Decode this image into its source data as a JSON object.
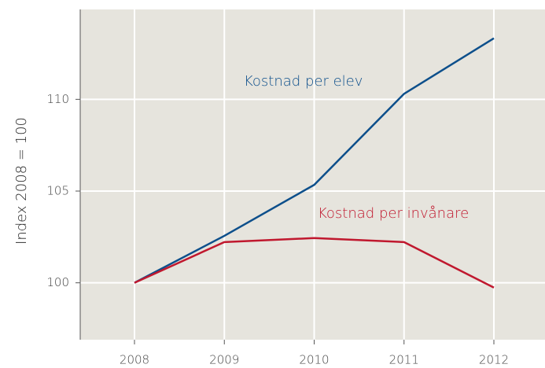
{
  "chart_data": {
    "type": "line",
    "ylabel": "Index 2008 = 100",
    "categories": [
      "2008",
      "2009",
      "2010",
      "2011",
      "2012"
    ],
    "series": [
      {
        "name": "Kostnad per elev",
        "color": "#0d4f8b",
        "values": [
          100,
          102.56,
          105.34,
          110.3,
          113.33
        ]
      },
      {
        "name": "Kostnad per invånare",
        "color": "#c0182e",
        "values": [
          100,
          102.22,
          102.44,
          102.22,
          99.74
        ]
      }
    ],
    "ylim": [
      96.9,
      114.9
    ],
    "yticks": [
      100,
      105,
      110
    ],
    "grid": true
  }
}
